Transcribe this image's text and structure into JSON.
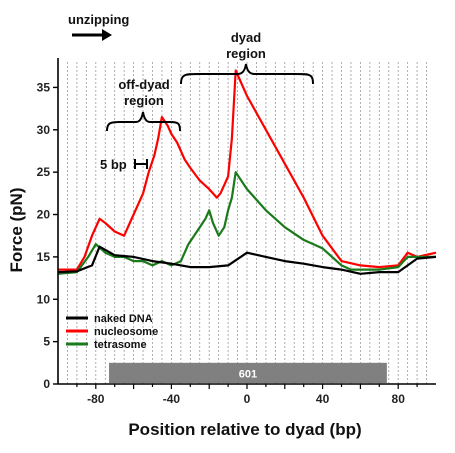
{
  "chart_data": {
    "type": "line",
    "xlabel": "Position relative to dyad (bp)",
    "ylabel": "Force (pN)",
    "xlim": [
      -100,
      100
    ],
    "ylim": [
      0,
      38
    ],
    "x_ticks": [
      -80,
      -40,
      0,
      40,
      80
    ],
    "y_ticks": [
      0,
      5,
      10,
      15,
      20,
      25,
      30,
      35
    ],
    "grid": "vertical dotted, every 5 bp",
    "legend_position": "bottom-left",
    "series": [
      {
        "name": "naked DNA",
        "color": "#000000",
        "x": [
          -100,
          -90,
          -82,
          -78,
          -70,
          -60,
          -50,
          -40,
          -30,
          -20,
          -10,
          0,
          10,
          20,
          30,
          40,
          50,
          60,
          70,
          80,
          90,
          100
        ],
        "y": [
          13.2,
          13.3,
          14.0,
          16.2,
          15.2,
          15.0,
          14.5,
          14.2,
          13.8,
          13.8,
          14.0,
          15.5,
          15.0,
          14.5,
          14.2,
          13.8,
          13.5,
          13.0,
          13.2,
          13.2,
          14.8,
          15.0
        ]
      },
      {
        "name": "nucleosome",
        "color": "#ff0000",
        "x": [
          -100,
          -90,
          -86,
          -82,
          -78,
          -75,
          -70,
          -65,
          -62,
          -60,
          -55,
          -52,
          -49,
          -47,
          -45,
          -42,
          -40,
          -37,
          -35,
          -33,
          -30,
          -25,
          -20,
          -16,
          -14,
          -12,
          -10,
          -8,
          -6,
          0,
          10,
          20,
          30,
          40,
          50,
          60,
          70,
          80,
          85,
          90,
          100
        ],
        "y": [
          13.5,
          13.5,
          15.0,
          17.5,
          19.5,
          19.0,
          18.0,
          17.5,
          19.0,
          20.0,
          22.5,
          25.0,
          27.0,
          29.0,
          31.5,
          30.5,
          29.5,
          28.5,
          27.5,
          26.5,
          25.5,
          24.0,
          23.0,
          22.0,
          22.5,
          23.5,
          24.5,
          29.0,
          37.0,
          34.0,
          30.0,
          26.0,
          22.0,
          17.5,
          14.5,
          14.0,
          13.8,
          14.0,
          15.5,
          15.0,
          15.5
        ]
      },
      {
        "name": "tetrasome",
        "color": "#1a7a1a",
        "x": [
          -100,
          -90,
          -84,
          -80,
          -75,
          -70,
          -65,
          -60,
          -55,
          -50,
          -45,
          -40,
          -35,
          -31,
          -28,
          -25,
          -22,
          -20,
          -18,
          -15,
          -12,
          -10,
          -8,
          -6,
          0,
          10,
          20,
          30,
          40,
          50,
          55,
          60,
          70,
          80,
          85,
          90,
          100
        ],
        "y": [
          13.0,
          13.2,
          15.0,
          16.5,
          15.5,
          15.0,
          15.0,
          14.5,
          14.5,
          14.0,
          14.5,
          14.0,
          14.5,
          16.5,
          17.5,
          18.5,
          19.5,
          20.5,
          19.0,
          17.5,
          18.5,
          20.5,
          22.0,
          25.0,
          23.0,
          20.5,
          18.5,
          17.0,
          16.0,
          14.0,
          13.5,
          13.5,
          13.5,
          13.8,
          15.0,
          15.0,
          15.0
        ]
      }
    ],
    "annotations": {
      "unzipping": "unzipping",
      "off_dyad_line1": "off-dyad",
      "off_dyad_line2": "region",
      "dyad_line1": "dyad",
      "dyad_line2": "region",
      "scale": "5 bp",
      "bar_label": "601"
    },
    "bar_601": {
      "x_start": -73,
      "x_end": 74,
      "color": "#808080"
    }
  }
}
